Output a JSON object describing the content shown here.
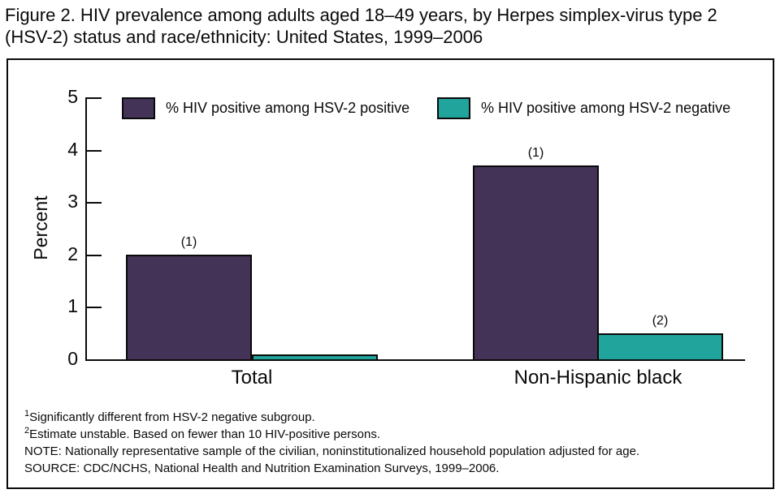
{
  "title": "Figure 2. HIV prevalence among adults aged 18–49 years, by Herpes simplex-virus type 2 (HSV-2) status and race/ethnicity: United States, 1999–2006",
  "colors": {
    "hsv2_positive": "#433357",
    "hsv2_negative": "#20A49C",
    "axis": "#0a0a0a"
  },
  "chart_data": {
    "type": "bar",
    "categories": [
      "Total",
      "Non-Hispanic black"
    ],
    "series": [
      {
        "name": "% HIV positive among HSV-2 positive",
        "values": [
          2.0,
          3.7
        ],
        "markers": [
          "(1)",
          "(1)"
        ],
        "color": "#433357"
      },
      {
        "name": "% HIV positive among HSV-2 negative",
        "values": [
          0.1,
          0.5
        ],
        "markers": [
          "",
          "(2)"
        ],
        "color": "#20A49C"
      }
    ],
    "xlabel": "",
    "ylabel": "Percent",
    "ylim": [
      0,
      5
    ],
    "yticks": [
      0,
      1,
      2,
      3,
      4,
      5
    ],
    "grid": false,
    "legend_position": "top-inside"
  },
  "footnotes": [
    {
      "sup": "1",
      "text": "Significantly different from HSV-2 negative subgroup."
    },
    {
      "sup": "2",
      "text": "Estimate unstable. Based on fewer than 10 HIV-positive persons."
    },
    {
      "sup": "",
      "text": "NOTE: Nationally representative sample of the civilian, noninstitutionalized household population adjusted for age."
    },
    {
      "sup": "",
      "text": "SOURCE: CDC/NCHS, National Health and Nutrition Examination Surveys, 1999–2006."
    }
  ]
}
